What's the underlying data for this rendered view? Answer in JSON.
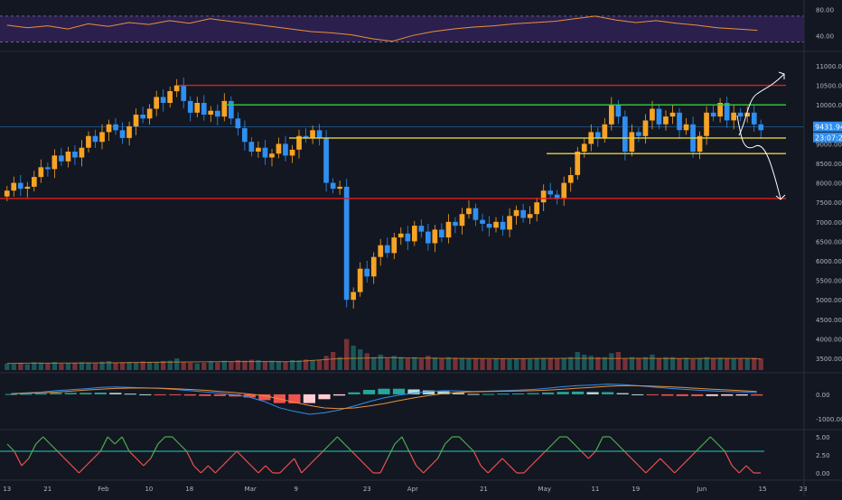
{
  "theme": {
    "background": "#131722",
    "bull": "#f7a325",
    "bear": "#2f8ff0",
    "res_red": "#e01e1e",
    "res_green": "#2ed62e",
    "sup_yellow": "#e5d23a",
    "rsi_line": "#e8913a",
    "rsi_band": "#2b1f4d",
    "macd_line": "#2f8ff0",
    "signal_line": "#e8913a",
    "hist_up": "#26a69a",
    "hist_down": "#ef5350",
    "osc_up": "#4caf50",
    "osc_down": "#ef5350",
    "osc_level": "#26a69a"
  },
  "chart_data": [
    {
      "type": "line",
      "name": "rsi-panel",
      "ylim": [
        25,
        88
      ],
      "band": [
        30,
        70
      ],
      "y_ticks": [
        "80.00",
        "40.00"
      ],
      "y_tick_values": [
        80,
        40
      ],
      "x": [
        0,
        4,
        8,
        12,
        16,
        20,
        24,
        28,
        32,
        36,
        40,
        44,
        48,
        52,
        56,
        60,
        64,
        68,
        72,
        76,
        80,
        84,
        88,
        92,
        96,
        100,
        104,
        108,
        112,
        116,
        120,
        124,
        128,
        132,
        136,
        140,
        144,
        148
      ],
      "values": [
        56,
        52,
        55,
        50,
        58,
        54,
        60,
        57,
        63,
        59,
        66,
        62,
        58,
        54,
        50,
        46,
        44,
        41,
        35,
        31,
        40,
        46,
        50,
        53,
        55,
        58,
        60,
        62,
        66,
        70,
        64,
        60,
        63,
        59,
        56,
        52,
        50,
        48
      ]
    },
    {
      "type": "candlestick",
      "name": "price",
      "ylim": [
        3200,
        11300
      ],
      "y_ticks": [
        "11000.00",
        "10500.00",
        "10000.00",
        "9500.00",
        "9000.00",
        "8500.00",
        "8000.00",
        "7500.00",
        "7000.00",
        "6500.00",
        "6000.00",
        "5500.00",
        "5000.00",
        "4500.00",
        "4000.00",
        "3500.00"
      ],
      "y_tick_values": [
        11000,
        10500,
        10000,
        9500,
        9000,
        8500,
        8000,
        7500,
        7000,
        6500,
        6000,
        5500,
        5000,
        4500,
        4000,
        3500
      ],
      "x_ticks": [
        "13",
        "21",
        "Feb",
        "10",
        "18",
        "Mar",
        "9",
        "23",
        "Apr",
        "21",
        "May",
        "11",
        "19",
        "Jun",
        "15",
        "23"
      ],
      "x_tick_days": [
        0,
        8,
        19,
        28,
        36,
        48,
        57,
        71,
        80,
        94,
        106,
        116,
        124,
        137,
        149,
        157
      ],
      "price_label": "9431.94",
      "countdown_label": "23:07:25",
      "price_label_value": 9431.94,
      "closes": [
        7800,
        8000,
        7850,
        7900,
        8150,
        8400,
        8350,
        8700,
        8550,
        8800,
        8650,
        8900,
        9200,
        9050,
        9300,
        9500,
        9350,
        9150,
        9450,
        9750,
        9650,
        9900,
        10200,
        10050,
        10350,
        10500,
        10100,
        9800,
        10050,
        9750,
        9850,
        9700,
        10100,
        9650,
        9400,
        9050,
        8800,
        8900,
        8650,
        8750,
        9000,
        8700,
        8850,
        9200,
        9150,
        9350,
        9150,
        8000,
        7850,
        7900,
        5000,
        5200,
        5800,
        5600,
        6100,
        6400,
        6200,
        6600,
        6700,
        6500,
        6900,
        6750,
        6450,
        6800,
        6600,
        7000,
        6900,
        7200,
        7350,
        7050,
        6950,
        6850,
        7000,
        6800,
        7150,
        7300,
        7100,
        7200,
        7500,
        7800,
        7700,
        7600,
        8000,
        8200,
        8800,
        9000,
        9300,
        9150,
        9500,
        10000,
        9700,
        8800,
        9300,
        9200,
        9600,
        9900,
        9500,
        9700,
        9800,
        9350,
        9500,
        8800,
        9200,
        9800,
        9700,
        10050,
        9600,
        9800,
        9700,
        9800,
        9500,
        9350
      ],
      "volume_ylim": [
        0,
        2800
      ],
      "volume": [
        500,
        480,
        550,
        450,
        600,
        580,
        520,
        620,
        500,
        540,
        560,
        610,
        590,
        520,
        650,
        700,
        560,
        600,
        620,
        580,
        680,
        640,
        620,
        700,
        720,
        900,
        600,
        580,
        520,
        560,
        680,
        600,
        720,
        640,
        760,
        720,
        800,
        760,
        680,
        720,
        700,
        660,
        780,
        740,
        820,
        760,
        780,
        1100,
        1400,
        1000,
        2400,
        1900,
        1600,
        1300,
        1000,
        1200,
        900,
        1100,
        1000,
        900,
        1000,
        880,
        1100,
        980,
        900,
        1000,
        950,
        920,
        880,
        900,
        870,
        840,
        900,
        880,
        850,
        900,
        880,
        860,
        900,
        920,
        900,
        880,
        940,
        1000,
        1400,
        1200,
        1100,
        1000,
        1000,
        1300,
        1400,
        900,
        1000,
        920,
        1000,
        1200,
        900,
        1000,
        1000,
        900,
        950,
        850,
        900,
        1000,
        900,
        950,
        920,
        900,
        880,
        900,
        950,
        900
      ],
      "ma_values": [
        520,
        525,
        530,
        532,
        535,
        540,
        545,
        550,
        555,
        560,
        570,
        585,
        590,
        600,
        610,
        620,
        630,
        640,
        650,
        660,
        660,
        660,
        658,
        655,
        650,
        660,
        700,
        760,
        820,
        880,
        900,
        920,
        940,
        960,
        950,
        940,
        930,
        920,
        910,
        900,
        900,
        895,
        890,
        885,
        880,
        880,
        890,
        900,
        905,
        910,
        910,
        905,
        900,
        895,
        900,
        910,
        905,
        900,
        895,
        890,
        895,
        900,
        905,
        905,
        905,
        900,
        860
      ]
    },
    {
      "type": "line",
      "name": "macd-panel",
      "ylim": [
        -1300,
        700
      ],
      "y_ticks": [
        "0.00",
        "-1000.00"
      ],
      "y_tick_values": [
        0,
        -1000
      ],
      "macd": [
        30,
        60,
        90,
        150,
        190,
        230,
        280,
        300,
        280,
        260,
        240,
        200,
        150,
        100,
        50,
        -20,
        -120,
        -300,
        -550,
        -700,
        -820,
        -760,
        -640,
        -480,
        -300,
        -150,
        -30,
        50,
        110,
        150,
        140,
        120,
        130,
        150,
        170,
        200,
        250,
        310,
        360,
        380,
        420,
        400,
        350,
        300,
        250,
        210,
        170,
        140,
        120,
        100,
        70
      ],
      "signal": [
        20,
        40,
        60,
        90,
        130,
        170,
        210,
        240,
        255,
        260,
        250,
        230,
        200,
        165,
        120,
        70,
        10,
        -60,
        -190,
        -330,
        -460,
        -560,
        -590,
        -560,
        -480,
        -380,
        -260,
        -150,
        -50,
        30,
        80,
        105,
        115,
        125,
        135,
        150,
        175,
        210,
        250,
        290,
        330,
        350,
        350,
        335,
        310,
        280,
        245,
        210,
        180,
        150,
        120
      ],
      "histogram": [
        10,
        20,
        30,
        60,
        60,
        60,
        70,
        60,
        25,
        0,
        -10,
        -30,
        -50,
        -65,
        -70,
        -90,
        -130,
        -240,
        -360,
        -370,
        -360,
        -200,
        -50,
        80,
        180,
        230,
        230,
        200,
        160,
        120,
        60,
        15,
        15,
        25,
        35,
        50,
        75,
        100,
        110,
        90,
        90,
        50,
        0,
        -35,
        -60,
        -70,
        -75,
        -70,
        -60,
        -50,
        -50
      ]
    },
    {
      "type": "line",
      "name": "oscillator-panel",
      "ylim": [
        -0.5,
        5.5
      ],
      "level": 3.0,
      "y_ticks": [
        "5.00",
        "2.50",
        "0.00"
      ],
      "y_tick_values": [
        5,
        2.5,
        0
      ],
      "values": [
        4,
        3,
        1,
        2,
        4,
        5,
        4,
        3,
        2,
        1,
        0,
        1,
        2,
        3,
        5,
        4,
        5,
        3,
        2,
        1,
        2,
        4,
        5,
        5,
        4,
        3,
        1,
        0,
        1,
        0,
        1,
        2,
        3,
        2,
        1,
        0,
        1,
        0,
        0,
        1,
        2,
        0,
        1,
        2,
        3,
        4,
        5,
        4,
        3,
        2,
        1,
        0,
        0,
        2,
        4,
        5,
        3,
        1,
        0,
        1,
        2,
        4,
        5,
        5,
        4,
        3,
        1,
        0,
        1,
        2,
        1,
        0,
        0,
        1,
        2,
        3,
        4,
        5,
        5,
        4,
        3,
        2,
        3,
        5,
        5,
        4,
        3,
        2,
        1,
        0,
        1,
        2,
        1,
        0,
        1,
        2,
        3,
        4,
        5,
        4,
        3,
        1,
        0,
        1,
        0,
        0
      ]
    }
  ],
  "annotations": {
    "hlines": [
      {
        "name": "resistance-top",
        "value": 10500,
        "color_key": "res_red"
      },
      {
        "name": "resistance-mid",
        "value": 10000,
        "color_key": "res_green"
      },
      {
        "name": "support-upper",
        "value": 9150,
        "color_key": "sup_yellow"
      },
      {
        "name": "support-lower",
        "value": 8750,
        "color_key": "sup_yellow"
      },
      {
        "name": "support-bottom",
        "value": 7600,
        "color_key": "res_red"
      }
    ]
  }
}
